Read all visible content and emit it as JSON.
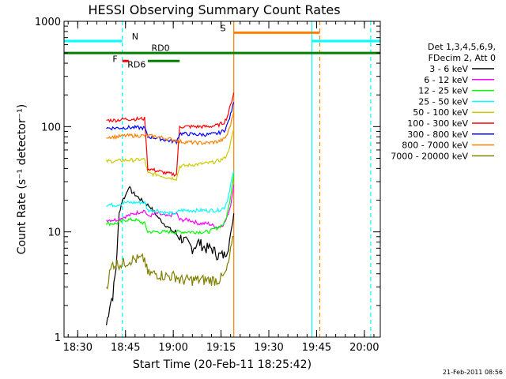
{
  "chart_data": {
    "type": "line",
    "title": "HESSI Observing Summary Count Rates",
    "xlabel": "Start Time (20-Feb-11 18:25:42)",
    "ylabel": "Count Rate (s⁻¹ detector⁻¹)",
    "xscale": "time",
    "yscale": "log",
    "xlim": [
      "18:25:42",
      "20:05:00"
    ],
    "ylim": [
      1,
      1000
    ],
    "x_ticks": [
      "18:30",
      "18:45",
      "19:00",
      "19:15",
      "19:30",
      "19:45",
      "20:00"
    ],
    "y_ticks": [
      "1",
      "10",
      "100",
      "1000"
    ],
    "legend_header": [
      "Det 1,3,4,5,6,9,",
      "FDecim 2, Att 0"
    ],
    "legend_position": "right",
    "footer": "21-Feb-2011 08:56",
    "series": [
      {
        "name": "3 - 6 keV",
        "color": "#000000",
        "points": [
          [
            "18:39",
            1.3
          ],
          [
            "18:40",
            2.0
          ],
          [
            "18:41",
            2.5
          ],
          [
            "18:42",
            4.5
          ],
          [
            "18:43",
            15
          ],
          [
            "18:44",
            20
          ],
          [
            "18:45",
            22
          ],
          [
            "18:46",
            27
          ],
          [
            "18:47",
            24
          ],
          [
            "18:50",
            20
          ],
          [
            "18:52",
            18
          ],
          [
            "18:53",
            17
          ],
          [
            "18:55",
            14
          ],
          [
            "18:57",
            12
          ],
          [
            "19:00",
            10
          ],
          [
            "19:02",
            9
          ],
          [
            "19:04",
            8
          ],
          [
            "19:06",
            7
          ],
          [
            "19:08",
            8
          ],
          [
            "19:10",
            7
          ],
          [
            "19:12",
            7
          ],
          [
            "19:14",
            6
          ],
          [
            "19:16",
            6
          ],
          [
            "19:17",
            7
          ],
          [
            "19:18",
            9
          ],
          [
            "19:19",
            15
          ]
        ]
      },
      {
        "name": "6 - 12 keV",
        "color": "#ff00ff",
        "points": [
          [
            "18:39",
            13
          ],
          [
            "18:42",
            13
          ],
          [
            "18:45",
            14
          ],
          [
            "18:48",
            15
          ],
          [
            "18:51",
            16
          ],
          [
            "18:52",
            14
          ],
          [
            "18:55",
            15
          ],
          [
            "18:58",
            14
          ],
          [
            "19:01",
            15
          ],
          [
            "19:02",
            13
          ],
          [
            "19:05",
            13
          ],
          [
            "19:08",
            12
          ],
          [
            "19:11",
            12
          ],
          [
            "19:14",
            11
          ],
          [
            "19:16",
            12
          ],
          [
            "19:17",
            14
          ],
          [
            "19:18",
            18
          ],
          [
            "19:19",
            28
          ]
        ]
      },
      {
        "name": "12 - 25 keV",
        "color": "#00ff00",
        "points": [
          [
            "18:39",
            12
          ],
          [
            "18:42",
            12
          ],
          [
            "18:45",
            13
          ],
          [
            "18:48",
            13
          ],
          [
            "18:51",
            12
          ],
          [
            "18:52",
            10
          ],
          [
            "18:55",
            10
          ],
          [
            "18:58",
            10
          ],
          [
            "19:01",
            10
          ],
          [
            "19:02",
            10
          ],
          [
            "19:05",
            10
          ],
          [
            "19:08",
            10
          ],
          [
            "19:11",
            10
          ],
          [
            "19:14",
            11
          ],
          [
            "19:16",
            12
          ],
          [
            "19:17",
            15
          ],
          [
            "19:18",
            22
          ],
          [
            "19:19",
            35
          ]
        ]
      },
      {
        "name": "25 - 50 keV",
        "color": "#00ffff",
        "points": [
          [
            "18:39",
            18
          ],
          [
            "18:42",
            18
          ],
          [
            "18:45",
            19
          ],
          [
            "18:48",
            19
          ],
          [
            "18:51",
            19
          ],
          [
            "18:52",
            16
          ],
          [
            "18:55",
            16
          ],
          [
            "18:58",
            15
          ],
          [
            "19:01",
            15
          ],
          [
            "19:02",
            16
          ],
          [
            "19:05",
            16
          ],
          [
            "19:08",
            16
          ],
          [
            "19:11",
            16
          ],
          [
            "19:14",
            16
          ],
          [
            "19:16",
            17
          ],
          [
            "19:17",
            20
          ],
          [
            "19:18",
            28
          ],
          [
            "19:19",
            38
          ]
        ]
      },
      {
        "name": "50 - 100 keV",
        "color": "#cccc00",
        "points": [
          [
            "18:39",
            47
          ],
          [
            "18:42",
            47
          ],
          [
            "18:45",
            48
          ],
          [
            "18:48",
            48
          ],
          [
            "18:51",
            49
          ],
          [
            "18:52",
            36
          ],
          [
            "18:55",
            35
          ],
          [
            "18:58",
            33
          ],
          [
            "19:01",
            32
          ],
          [
            "19:02",
            42
          ],
          [
            "19:05",
            43
          ],
          [
            "19:08",
            44
          ],
          [
            "19:11",
            45
          ],
          [
            "19:14",
            47
          ],
          [
            "19:16",
            50
          ],
          [
            "19:17",
            55
          ],
          [
            "19:18",
            70
          ],
          [
            "19:19",
            95
          ]
        ]
      },
      {
        "name": "100 - 300 keV",
        "color": "#ff0000",
        "points": [
          [
            "18:39",
            115
          ],
          [
            "18:42",
            115
          ],
          [
            "18:45",
            118
          ],
          [
            "18:48",
            118
          ],
          [
            "18:51",
            119
          ],
          [
            "18:52",
            40
          ],
          [
            "18:55",
            38
          ],
          [
            "18:58",
            36
          ],
          [
            "19:01",
            35
          ],
          [
            "19:02",
            100
          ],
          [
            "19:05",
            100
          ],
          [
            "19:08",
            100
          ],
          [
            "19:11",
            100
          ],
          [
            "19:14",
            103
          ],
          [
            "19:16",
            110
          ],
          [
            "19:17",
            125
          ],
          [
            "19:18",
            160
          ],
          [
            "19:19",
            210
          ]
        ]
      },
      {
        "name": "300 - 800 keV",
        "color": "#0000ff",
        "points": [
          [
            "18:39",
            97
          ],
          [
            "18:42",
            97
          ],
          [
            "18:45",
            98
          ],
          [
            "18:48",
            98
          ],
          [
            "18:51",
            97
          ],
          [
            "18:52",
            80
          ],
          [
            "18:55",
            78
          ],
          [
            "18:58",
            74
          ],
          [
            "19:01",
            72
          ],
          [
            "19:02",
            86
          ],
          [
            "19:05",
            85
          ],
          [
            "19:08",
            84
          ],
          [
            "19:11",
            84
          ],
          [
            "19:14",
            86
          ],
          [
            "19:16",
            92
          ],
          [
            "19:17",
            105
          ],
          [
            "19:18",
            130
          ],
          [
            "19:19",
            170
          ]
        ]
      },
      {
        "name": "800 - 7000 keV",
        "color": "#ff8000",
        "points": [
          [
            "18:39",
            80
          ],
          [
            "18:42",
            80
          ],
          [
            "18:45",
            82
          ],
          [
            "18:48",
            82
          ],
          [
            "18:51",
            82
          ],
          [
            "18:52",
            82
          ],
          [
            "18:55",
            80
          ],
          [
            "18:58",
            77
          ],
          [
            "19:01",
            74
          ],
          [
            "19:02",
            72
          ],
          [
            "19:05",
            71
          ],
          [
            "19:08",
            70
          ],
          [
            "19:11",
            70
          ],
          [
            "19:14",
            72
          ],
          [
            "19:16",
            76
          ],
          [
            "19:17",
            85
          ],
          [
            "19:18",
            105
          ],
          [
            "19:19",
            140
          ]
        ]
      },
      {
        "name": "7000 - 20000 keV",
        "color": "#808000",
        "points": [
          [
            "18:39",
            3
          ],
          [
            "18:40",
            4
          ],
          [
            "18:41",
            5
          ],
          [
            "18:44",
            5
          ],
          [
            "18:47",
            5.5
          ],
          [
            "18:50",
            5.5
          ],
          [
            "18:51",
            5.5
          ],
          [
            "18:52",
            4
          ],
          [
            "18:55",
            4
          ],
          [
            "18:58",
            3.8
          ],
          [
            "19:01",
            3.8
          ],
          [
            "19:02",
            3.5
          ],
          [
            "19:05",
            3.5
          ],
          [
            "19:08",
            3.5
          ],
          [
            "19:11",
            3.5
          ],
          [
            "19:14",
            3.5
          ],
          [
            "19:16",
            3.8
          ],
          [
            "19:17",
            4.5
          ],
          [
            "19:18",
            6.5
          ],
          [
            "19:19",
            9
          ]
        ]
      }
    ],
    "flags": [
      {
        "label": "N",
        "color": "#00ffff",
        "y": 650,
        "segments": [
          [
            "18:25:42",
            "18:44:00"
          ],
          [
            "19:43:30",
            "20:05:00"
          ]
        ]
      },
      {
        "label": "F",
        "color": "#ff0000",
        "y": 420,
        "segments": [
          [
            "18:44:00",
            "18:46:00"
          ]
        ]
      },
      {
        "label": "RD0",
        "color": "#008000",
        "y": 500,
        "segments": [
          [
            "18:25:42",
            "20:05:00"
          ]
        ]
      },
      {
        "label": "RD6",
        "color": "#008000",
        "y": 420,
        "segments": [
          [
            "18:52:00",
            "19:02:00"
          ]
        ]
      },
      {
        "label": "S",
        "color": "#ff8000",
        "y": 780,
        "segments": [
          [
            "19:19:00",
            "19:46:00"
          ]
        ]
      }
    ],
    "vertical_markers": [
      {
        "x": "18:44:00",
        "color": "#00ffff",
        "style": "dashed"
      },
      {
        "x": "19:19:00",
        "color": "#ff8000",
        "style": "solid"
      },
      {
        "x": "19:43:30",
        "color": "#00ffff",
        "style": "solid"
      },
      {
        "x": "19:46:00",
        "color": "#ff8000",
        "style": "dashed"
      },
      {
        "x": "20:02:00",
        "color": "#00ffff",
        "style": "dashed"
      }
    ]
  }
}
